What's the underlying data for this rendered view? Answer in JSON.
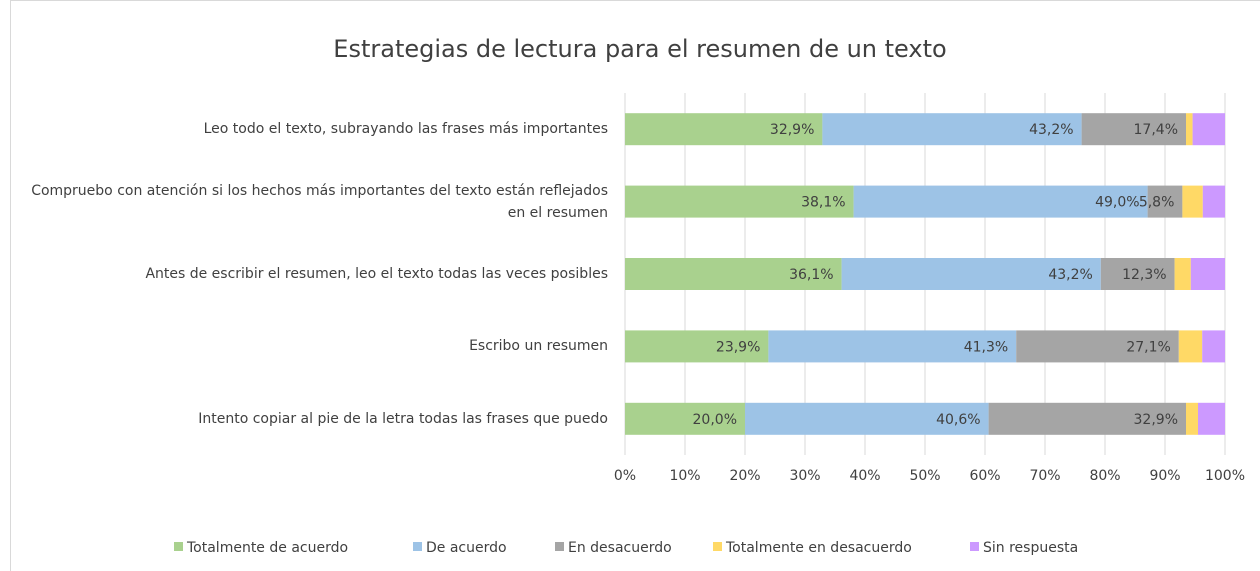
{
  "chart_data": {
    "type": "stacked-bar-horizontal",
    "title": "Estrategias de lectura para el resumen de un texto",
    "categories": [
      "Leo todo el texto, subrayando las frases más importantes",
      "Compruebo con atención si los hechos más importantes del texto están reflejados en el resumen",
      "Antes de escribir el resumen, leo el texto todas las veces posibles",
      "Escribo un resumen",
      "Intento copiar al pie de la letra todas las frases que puedo"
    ],
    "series": [
      {
        "name": "Totalmente de acuerdo",
        "color": "#a9d18e",
        "values": [
          32.9,
          38.1,
          36.1,
          23.9,
          20.0
        ],
        "value_labels": [
          "32,9%",
          "38,1%",
          "36,1%",
          "23,9%",
          "20,0%"
        ]
      },
      {
        "name": "De acuerdo",
        "color": "#9dc3e6",
        "values": [
          43.2,
          49.0,
          43.2,
          41.3,
          40.6
        ],
        "value_labels": [
          "43,2%",
          "49,0%",
          "43,2%",
          "41,3%",
          "40,6%"
        ]
      },
      {
        "name": "En desacuerdo",
        "color": "#a5a5a5",
        "values": [
          17.4,
          5.8,
          12.3,
          27.1,
          32.9
        ],
        "value_labels": [
          "17,4%",
          "5,8%",
          "12,3%",
          "27,1%",
          "32,9%"
        ]
      },
      {
        "name": "Totalmente en desacuerdo",
        "color": "#ffd966",
        "values": [
          1.1,
          3.4,
          2.7,
          3.9,
          2.0
        ]
      },
      {
        "name": "Sin respuesta",
        "color": "#cc99ff",
        "values": [
          5.4,
          3.7,
          5.7,
          3.8,
          4.5
        ]
      }
    ],
    "xlim": [
      0,
      100
    ],
    "xticks": [
      {
        "value": 0,
        "label": "0%"
      },
      {
        "value": 10,
        "label": "10%"
      },
      {
        "value": 20,
        "label": "20%"
      },
      {
        "value": 30,
        "label": "30%"
      },
      {
        "value": 40,
        "label": "40%"
      },
      {
        "value": 50,
        "label": "50%"
      },
      {
        "value": 60,
        "label": "60%"
      },
      {
        "value": 70,
        "label": "70%"
      },
      {
        "value": 80,
        "label": "80%"
      },
      {
        "value": 90,
        "label": "90%"
      },
      {
        "value": 100,
        "label": "100%"
      }
    ],
    "grid": true,
    "legend": "bottom"
  }
}
